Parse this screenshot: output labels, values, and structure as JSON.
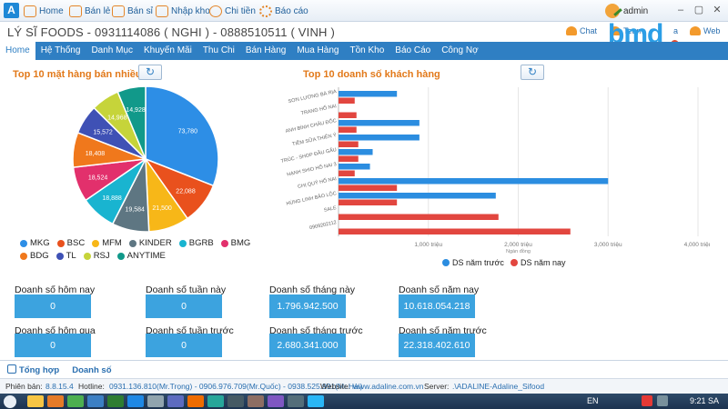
{
  "toolbar": {
    "logo": "A",
    "items": [
      {
        "label": "Home",
        "icon": "home-icon"
      },
      {
        "label": "Bán lẻ",
        "icon": "cart-icon"
      },
      {
        "label": "Bán sỉ",
        "icon": "cart-icon"
      },
      {
        "label": "Nhập kho",
        "icon": "import-icon"
      },
      {
        "label": "Chi tiền",
        "icon": "money-icon"
      },
      {
        "label": "Báo cáo",
        "icon": "report-icon"
      }
    ],
    "user": "admin"
  },
  "header": {
    "store_name": "LÝ SĨ FOODS - 0931114086 ( NGHI ) - 0888510511 ( VINH )",
    "quick_links": [
      "Chat",
      "Team",
      "a",
      "Web"
    ],
    "watermark": "bmd"
  },
  "menu": [
    "Home",
    "Hệ Thống",
    "Danh Mục",
    "Khuyến Mãi",
    "Thu Chi",
    "Bán Hàng",
    "Mua Hàng",
    "Tồn Kho",
    "Báo Cáo",
    "Công Nợ"
  ],
  "pie_panel": {
    "title": "Top 10 mặt hàng bán nhiều"
  },
  "bar_panel": {
    "title": "Top 10 doanh số  khách hàng"
  },
  "refresh_icon": "↻",
  "colors": {
    "accent": "#2f7fc3",
    "title_orange": "#e2791a",
    "kpi": "#3ca3df",
    "prev_year": "#2b8de0",
    "this_year": "#e2463f"
  },
  "chart_data": [
    {
      "type": "pie",
      "title": "Top 10 mặt hàng bán nhiều",
      "series": [
        {
          "name": "TL",
          "value": 73780,
          "label": "73,780",
          "color": "#2d8ee6"
        },
        {
          "name": "BDG",
          "value": 22088,
          "label": "22,088",
          "color": "#e9511d"
        },
        {
          "name": "BMG",
          "value": 21500,
          "label": "21,500",
          "color": "#f7b718"
        },
        {
          "name": "BGRB",
          "value": 19584,
          "label": "19,584",
          "color": "#5e7682"
        },
        {
          "name": "KINDER",
          "value": 18888,
          "label": "18,888",
          "color": "#19b4d0"
        },
        {
          "name": "MFM",
          "value": 18524,
          "label": "18,524",
          "color": "#e2306c"
        },
        {
          "name": "BSC",
          "value": 18408,
          "label": "18,408",
          "color": "#f0781c"
        },
        {
          "name": "MKG",
          "value": 15572,
          "label": "15,572",
          "color": "#3f51b5"
        },
        {
          "name": "RSJ",
          "value": 14968,
          "label": "14,968",
          "color": "#c6d43a"
        },
        {
          "name": "ANYTIME",
          "value": 14928,
          "label": "14,928",
          "color": "#11998a"
        }
      ],
      "legend": [
        {
          "name": "MKG",
          "color": "#2d8ee6"
        },
        {
          "name": "BSC",
          "color": "#e9511d"
        },
        {
          "name": "MFM",
          "color": "#f7b718"
        },
        {
          "name": "KINDER",
          "color": "#5e7682"
        },
        {
          "name": "BGRB",
          "color": "#19b4d0"
        },
        {
          "name": "BMG",
          "color": "#e2306c"
        },
        {
          "name": "BDG",
          "color": "#f0781c"
        },
        {
          "name": "TL",
          "color": "#3f51b5"
        },
        {
          "name": "RSJ",
          "color": "#c6d43a"
        },
        {
          "name": "ANYTIME",
          "color": "#11998a"
        }
      ]
    },
    {
      "type": "bar",
      "orientation": "horizontal",
      "title": "Top 10 doanh số  khách hàng",
      "categories": [
        "SƠN LƯƠNG BÀ RỊA",
        "TRANG HỐ NAI",
        "ANH BÌNH CHÂU ĐỐC",
        "TIỀM SỮA THIÊN Ý",
        "TRÚC - SHOP ĐẦU GẤU",
        "HẠNH SHIO HỐ NAI 3",
        "CHỊ QUÝ HỐ NAI",
        "HÙNG LINH BẢO LỘC",
        "SALE",
        "0909202112"
      ],
      "series": [
        {
          "name": "DS năm trước",
          "color": "#2b8de0",
          "values": [
            650,
            0,
            900,
            900,
            380,
            350,
            3000,
            1750,
            0,
            0
          ]
        },
        {
          "name": "DS năm nay",
          "color": "#e2463f",
          "values": [
            180,
            200,
            200,
            220,
            220,
            180,
            650,
            650,
            1780,
            2580
          ]
        }
      ],
      "xticks": [
        "1,000 triệu",
        "2,000 triệu",
        "3,000 triệu",
        "4,000 triệu"
      ],
      "xlim": [
        0,
        4000
      ],
      "x_unit_label": "Ngàn đồng"
    }
  ],
  "kpis": [
    {
      "label": "Doanh số hôm nay",
      "value": "0"
    },
    {
      "label": "Doanh số tuần này",
      "value": "0"
    },
    {
      "label": "Doanh số tháng này",
      "value": "1.796.942.500"
    },
    {
      "label": "Doanh số năm nay",
      "value": "10.618.054.218"
    },
    {
      "label": "Doanh số hôm qua",
      "value": "0"
    },
    {
      "label": "Doanh số tuần trước",
      "value": "0"
    },
    {
      "label": "Doanh số tháng trước",
      "value": "2.680.341.000"
    },
    {
      "label": "Doanh số năm trước",
      "value": "22.318.402.610"
    }
  ],
  "bottom_tabs": [
    "Tổng hợp",
    "Doanh số"
  ],
  "status": {
    "version_label": "Phiên bản:",
    "version": "8.8.15.4",
    "hotline_label": "Hotline:",
    "hotline": "0931.136.810(Mr.Trọng) - 0906.976.709(Mr.Quốc) - 0938.525.991(Mr.Hải)",
    "website_label": "Website:",
    "website": "www.adaline.com.vn",
    "server_label": "Server:",
    "server": ".\\ADALINE-Adaline_Sifood"
  },
  "taskbar": {
    "lang": "EN",
    "clock": "9:21 SA"
  }
}
